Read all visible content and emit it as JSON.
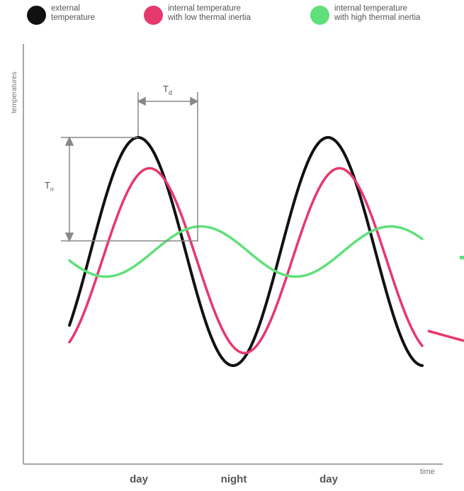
{
  "chart_data": {
    "type": "line",
    "title": "",
    "xlabel": "time",
    "ylabel": "temperatures",
    "categories": [
      "day",
      "night",
      "day"
    ],
    "annotations": {
      "phase_shift_label": "T",
      "phase_shift_sub": "d",
      "amplitude_label": "T",
      "amplitude_sub": "rr"
    },
    "legend_position": "top",
    "grid": false,
    "series": [
      {
        "name": "external\ntemperature",
        "color": "#111111",
        "shape": "sine",
        "period": 1.0,
        "amplitude": 1.0,
        "phase_offset": 0.0,
        "mean": 0.0
      },
      {
        "name": "internal temperature\nwith low thermal inertia",
        "color": "#e6386b",
        "shape": "sine",
        "period": 1.0,
        "amplitude": 0.81,
        "phase_offset": 0.06,
        "mean": -0.08
      },
      {
        "name": "internal temperature\nwith high thermal inertia",
        "color": "#5fe07a",
        "shape": "sine",
        "period": 1.0,
        "amplitude": 0.22,
        "phase_offset": 0.33,
        "mean": 0.0
      }
    ]
  }
}
